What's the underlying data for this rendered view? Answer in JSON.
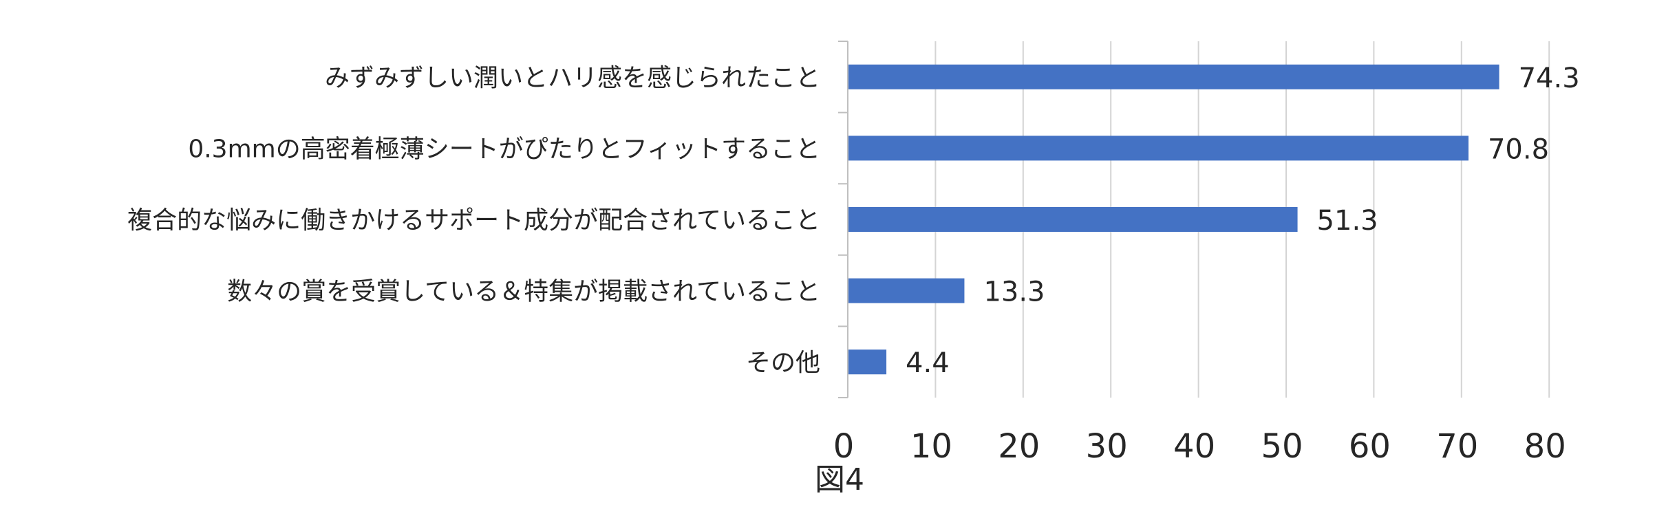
{
  "chart_data": {
    "type": "bar",
    "orientation": "horizontal",
    "categories": [
      "みずみずしい潤いとハリ感を感じられたこと",
      "0.3mmの高密着極薄シートがぴたりとフィットすること",
      "複合的な悩みに働きかけるサポート成分が配合されていること",
      "数々の賞を受賞している＆特集が掲載されていること",
      "その他"
    ],
    "values": [
      74.3,
      70.8,
      51.3,
      13.3,
      4.4
    ],
    "value_labels": [
      "74.3",
      "70.8",
      "51.3",
      "13.3",
      "4.4"
    ],
    "xlim": [
      0,
      80
    ],
    "xticks": [
      0,
      10,
      20,
      30,
      40,
      50,
      60,
      70,
      80
    ],
    "grid": true,
    "legend": "none",
    "bar_color": "#4472c4",
    "caption": "図4"
  }
}
